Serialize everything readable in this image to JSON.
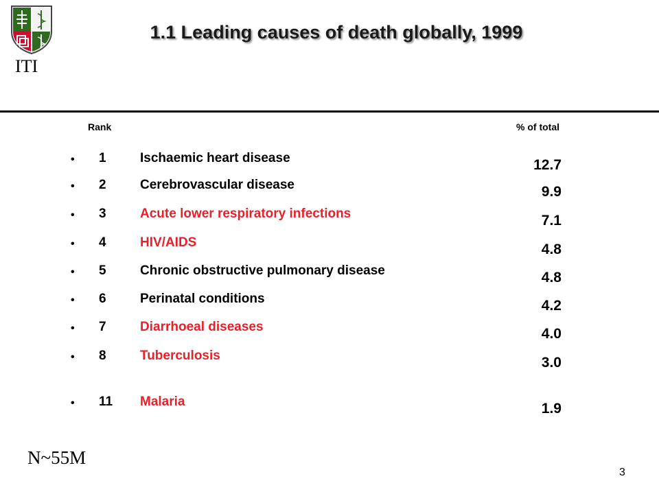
{
  "header": {
    "logo_text": "ITI",
    "title": "1.1 Leading causes of death globally, 1999"
  },
  "table": {
    "col_rank": "Rank",
    "col_pct": "% of total",
    "rows": [
      {
        "bullet": "•",
        "rank": "1",
        "cause": "Ischaemic heart disease",
        "pct": "12.7",
        "highlight": false
      },
      {
        "bullet": "•",
        "rank": "2",
        "cause": "Cerebrovascular disease",
        "pct": "9.9",
        "highlight": false
      },
      {
        "bullet": "•",
        "rank": "3",
        "cause": "Acute lower respiratory infections",
        "pct": "7.1",
        "highlight": true
      },
      {
        "bullet": "•",
        "rank": "4",
        "cause": "HIV/AIDS",
        "pct": "4.8",
        "highlight": true
      },
      {
        "bullet": "•",
        "rank": "5",
        "cause": "Chronic obstructive pulmonary disease",
        "pct": "4.8",
        "highlight": false
      },
      {
        "bullet": "•",
        "rank": "6",
        "cause": "Perinatal conditions",
        "pct": "4.2",
        "highlight": false
      },
      {
        "bullet": "•",
        "rank": "7",
        "cause": "Diarrhoeal diseases",
        "pct": "4.0",
        "highlight": true
      },
      {
        "bullet": "•",
        "rank": "8",
        "cause": "Tuberculosis",
        "pct": "3.0",
        "highlight": true
      },
      {
        "bullet": "•",
        "rank": "11",
        "cause": "Malaria",
        "pct": "1.9",
        "highlight": true
      }
    ]
  },
  "footer": {
    "note": "N~55M",
    "page_number": "3"
  },
  "colors": {
    "highlight": "#e8202a",
    "logo_green": "#2e6b1f",
    "logo_red": "#c8102e"
  }
}
